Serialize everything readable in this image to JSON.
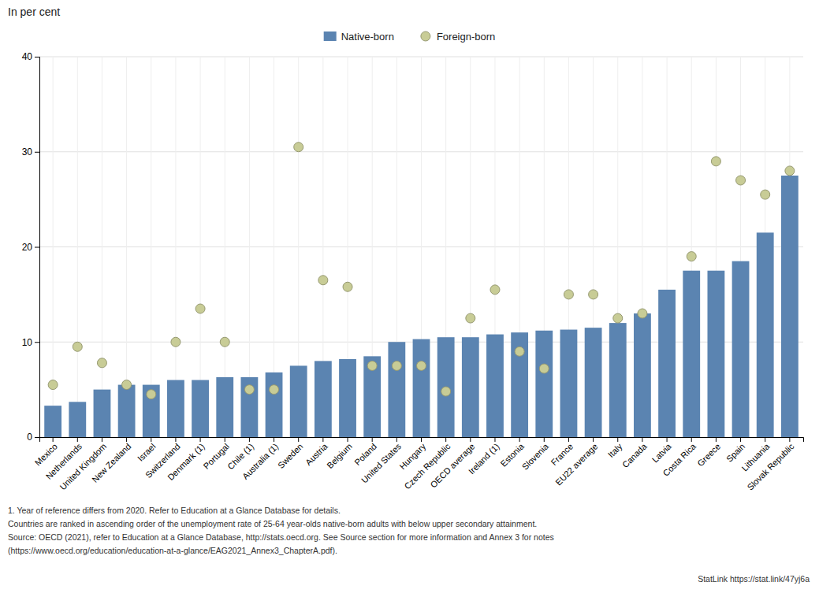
{
  "chart_data": {
    "type": "bar",
    "title": "In per cent",
    "categories": [
      "Mexico",
      "Netherlands",
      "United Kingdom",
      "New Zealand",
      "Israel",
      "Switzerland",
      "Denmark (1)",
      "Portugal",
      "Chile (1)",
      "Australia (1)",
      "Sweden",
      "Austria",
      "Belgium",
      "Poland",
      "United States",
      "Hungary",
      "Czech Republic",
      "OECD average",
      "Ireland (1)",
      "Estonia",
      "Slovenia",
      "France",
      "EU22 average",
      "Italy",
      "Canada",
      "Latvia",
      "Costa Rica",
      "Greece",
      "Spain",
      "Lithuania",
      "Slovak Republic"
    ],
    "series": [
      {
        "name": "Native-born",
        "type": "bar",
        "color": "#5b84b1",
        "values": [
          3.3,
          3.7,
          5.0,
          5.5,
          5.5,
          6.0,
          6.0,
          6.3,
          6.3,
          6.8,
          7.5,
          8.0,
          8.2,
          8.5,
          10.0,
          10.3,
          10.5,
          10.5,
          10.8,
          11.0,
          11.2,
          11.3,
          11.5,
          12.0,
          13.0,
          15.5,
          17.5,
          17.5,
          18.5,
          21.5,
          27.5
        ]
      },
      {
        "name": "Foreign-born",
        "type": "scatter",
        "marker": "circle",
        "color": "#c8cc96",
        "values": [
          5.5,
          9.5,
          7.8,
          5.5,
          4.5,
          10.0,
          13.5,
          10.0,
          5.0,
          5.0,
          30.5,
          16.5,
          15.8,
          7.5,
          7.5,
          7.5,
          4.8,
          12.5,
          15.5,
          9.0,
          7.2,
          15.0,
          15.0,
          12.5,
          13.0,
          null,
          19.0,
          29.0,
          27.0,
          25.5,
          28.0
        ]
      }
    ],
    "ylim": [
      0,
      40
    ],
    "yticks": [
      0,
      10,
      20,
      30,
      40
    ],
    "grid": true,
    "legend": "top",
    "annotations": [
      "1. Year of reference differs from 2020. Refer to Education at a Glance Database for details.",
      "Countries are ranked in ascending order of the unemployment rate of 25-64 year-olds native-born adults with below upper secondary attainment.",
      "Source: OECD (2021), refer to Education at a Glance Database, http://stats.oecd.org. See Source section for more information and Annex 3 for notes",
      "(https://www.oecd.org/education/education-at-a-glance/EAG2021_Annex3_ChapterA.pdf).",
      "StatLink https://stat.link/47yj6a"
    ]
  }
}
